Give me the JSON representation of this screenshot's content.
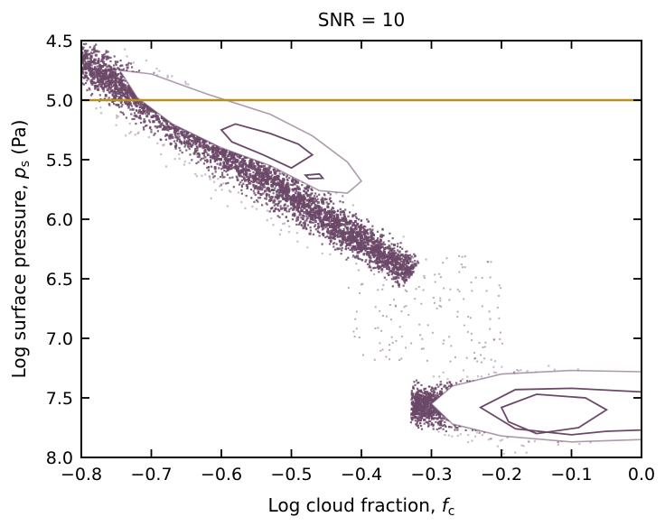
{
  "chart_data": {
    "type": "heatmap",
    "title": "SNR = 10",
    "xlabel": "Log cloud fraction, ",
    "xlabel_symbol": "f",
    "xlabel_sub": "c",
    "ylabel": "Log surface pressure, ",
    "ylabel_symbol": "p",
    "ylabel_sub": "s",
    "ylabel_unit": " (Pa)",
    "xlim": [
      -0.8,
      0.0
    ],
    "ylim": [
      8.0,
      4.5
    ],
    "y_inverted": true,
    "grid": false,
    "xticks": [
      -0.8,
      -0.7,
      -0.6,
      -0.5,
      -0.4,
      -0.3,
      -0.2,
      -0.1,
      0.0
    ],
    "xtick_labels": [
      "−0.8",
      "−0.7",
      "−0.6",
      "−0.5",
      "−0.4",
      "−0.3",
      "−0.2",
      "−0.1",
      "0.0"
    ],
    "yticks": [
      4.5,
      5.0,
      5.5,
      6.0,
      6.5,
      7.0,
      7.5,
      8.0
    ],
    "ytick_labels": [
      "4.5",
      "5.0",
      "5.5",
      "6.0",
      "6.5",
      "7.0",
      "7.5",
      "8.0"
    ],
    "reference_line": {
      "y": 5.0,
      "color": "#b8901e"
    },
    "colors": {
      "point": "#6b4868",
      "contour": "#6b4868",
      "fill": "#ffffff"
    },
    "modes": [
      {
        "name_hint": "upper",
        "axis_start": [
          -0.83,
          4.55
        ],
        "axis_end": [
          -0.33,
          6.45
        ],
        "half_width": 0.45,
        "contours": [
          [
            [
              -0.745,
              4.75
            ],
            [
              -0.7,
              4.78
            ],
            [
              -0.62,
              4.95
            ],
            [
              -0.53,
              5.12
            ],
            [
              -0.47,
              5.3
            ],
            [
              -0.42,
              5.52
            ],
            [
              -0.4,
              5.68
            ],
            [
              -0.42,
              5.78
            ],
            [
              -0.46,
              5.76
            ],
            [
              -0.53,
              5.55
            ],
            [
              -0.6,
              5.4
            ],
            [
              -0.67,
              5.2
            ],
            [
              -0.72,
              4.98
            ]
          ],
          [
            [
              -0.6,
              5.25
            ],
            [
              -0.58,
              5.2
            ],
            [
              -0.53,
              5.28
            ],
            [
              -0.49,
              5.37
            ],
            [
              -0.47,
              5.46
            ],
            [
              -0.5,
              5.57
            ],
            [
              -0.54,
              5.46
            ],
            [
              -0.585,
              5.35
            ]
          ],
          [
            [
              -0.48,
              5.63
            ],
            [
              -0.46,
              5.62
            ],
            [
              -0.455,
              5.655
            ],
            [
              -0.475,
              5.66
            ]
          ]
        ]
      },
      {
        "name_hint": "lower",
        "axis_start": [
          -0.33,
          7.55
        ],
        "axis_end": [
          0.0,
          7.6
        ],
        "half_width": 0.38,
        "contours": [
          [
            [
              -0.3,
              7.55
            ],
            [
              -0.27,
              7.4
            ],
            [
              -0.2,
              7.3
            ],
            [
              -0.1,
              7.27
            ],
            [
              0.0,
              7.28
            ],
            [
              0.0,
              7.85
            ],
            [
              -0.1,
              7.87
            ],
            [
              -0.2,
              7.82
            ],
            [
              -0.27,
              7.72
            ]
          ],
          [
            [
              -0.23,
              7.58
            ],
            [
              -0.18,
              7.43
            ],
            [
              -0.1,
              7.42
            ],
            [
              0.0,
              7.45
            ],
            [
              0.0,
              7.77
            ],
            [
              -0.05,
              7.78
            ],
            [
              -0.1,
              7.81
            ],
            [
              -0.18,
              7.76
            ]
          ],
          [
            [
              -0.2,
              7.58
            ],
            [
              -0.15,
              7.47
            ],
            [
              -0.08,
              7.5
            ],
            [
              -0.05,
              7.6
            ],
            [
              -0.09,
              7.75
            ],
            [
              -0.15,
              7.8
            ],
            [
              -0.19,
              7.7
            ]
          ]
        ]
      }
    ],
    "density_cells": [
      {
        "x": -0.8,
        "y": 4.5,
        "level": 0.62
      },
      {
        "x": -0.775,
        "y": 4.5,
        "level": 0.55
      },
      {
        "x": -0.75,
        "y": 4.5,
        "level": 0.45
      },
      {
        "x": -0.8,
        "y": 4.6,
        "level": 0.48
      },
      {
        "x": -0.775,
        "y": 4.6,
        "level": 0.4
      },
      {
        "x": -0.75,
        "y": 4.6,
        "level": 0.52
      },
      {
        "x": -0.725,
        "y": 4.6,
        "level": 0.58
      },
      {
        "x": -0.7,
        "y": 4.6,
        "level": 0.66
      },
      {
        "x": -0.8,
        "y": 4.7,
        "level": 0.58
      },
      {
        "x": -0.775,
        "y": 4.7,
        "level": 0.5
      },
      {
        "x": -0.675,
        "y": 4.7,
        "level": 0.6
      },
      {
        "x": -0.65,
        "y": 4.7,
        "level": 0.7
      },
      {
        "x": -0.8,
        "y": 4.8,
        "level": 0.78
      },
      {
        "x": -0.625,
        "y": 4.8,
        "level": 0.62
      },
      {
        "x": -0.6,
        "y": 4.8,
        "level": 0.74
      },
      {
        "x": -0.575,
        "y": 4.9,
        "level": 0.66
      },
      {
        "x": -0.55,
        "y": 4.9,
        "level": 0.78
      },
      {
        "x": -0.525,
        "y": 5.1,
        "level": 0.68
      },
      {
        "x": -0.5,
        "y": 5.2,
        "level": 0.76
      },
      {
        "x": -0.475,
        "y": 5.3,
        "level": 0.7
      },
      {
        "x": -0.45,
        "y": 5.4,
        "level": 0.74
      },
      {
        "x": -0.425,
        "y": 5.5,
        "level": 0.72
      },
      {
        "x": -0.4,
        "y": 5.7,
        "level": 0.76
      },
      {
        "x": -0.575,
        "y": 5.4,
        "level": 0.06
      },
      {
        "x": -0.55,
        "y": 5.4,
        "level": 0.12
      },
      {
        "x": -0.525,
        "y": 5.4,
        "level": 0.1
      },
      {
        "x": -0.6,
        "y": 5.3,
        "level": 0.05
      },
      {
        "x": -0.575,
        "y": 5.3,
        "level": 0.1
      },
      {
        "x": -0.55,
        "y": 5.3,
        "level": 0.12
      },
      {
        "x": -0.525,
        "y": 5.5,
        "level": 0.08
      },
      {
        "x": -0.5,
        "y": 5.5,
        "level": 0.1
      },
      {
        "x": -0.225,
        "y": 7.5,
        "level": 0.16
      },
      {
        "x": -0.2,
        "y": 7.5,
        "level": 0.42
      },
      {
        "x": -0.175,
        "y": 7.5,
        "level": 0.88
      },
      {
        "x": -0.15,
        "y": 7.5,
        "level": 0.88
      },
      {
        "x": -0.125,
        "y": 7.5,
        "level": 0.55
      },
      {
        "x": -0.1,
        "y": 7.5,
        "level": 0.3
      },
      {
        "x": -0.075,
        "y": 7.5,
        "level": 0.14
      },
      {
        "x": -0.05,
        "y": 7.5,
        "level": 0.08
      },
      {
        "x": -0.2,
        "y": 7.6,
        "level": 0.16
      },
      {
        "x": -0.175,
        "y": 7.6,
        "level": 0.32
      },
      {
        "x": -0.15,
        "y": 7.6,
        "level": 0.42
      },
      {
        "x": -0.125,
        "y": 7.6,
        "level": 0.3
      },
      {
        "x": -0.1,
        "y": 7.6,
        "level": 0.2
      },
      {
        "x": -0.075,
        "y": 7.6,
        "level": 0.12
      },
      {
        "x": -0.225,
        "y": 7.4,
        "level": 0.08
      },
      {
        "x": -0.2,
        "y": 7.4,
        "level": 0.1
      },
      {
        "x": -0.15,
        "y": 7.4,
        "level": 0.06
      },
      {
        "x": -0.275,
        "y": 7.3,
        "level": 0.68
      },
      {
        "x": -0.3,
        "y": 7.4,
        "level": 0.72
      },
      {
        "x": -0.3,
        "y": 7.6,
        "level": 0.74
      },
      {
        "x": -0.275,
        "y": 7.7,
        "level": 0.66
      },
      {
        "x": -0.25,
        "y": 7.8,
        "level": 0.7
      },
      {
        "x": -0.325,
        "y": 7.5,
        "level": 0.6
      },
      {
        "x": -0.025,
        "y": 7.2,
        "level": 0.66
      },
      {
        "x": -0.025,
        "y": 7.9,
        "level": 0.64
      },
      {
        "x": -0.2,
        "y": 7.2,
        "level": 0.7
      },
      {
        "x": -0.125,
        "y": 7.9,
        "level": 0.66
      },
      {
        "x": -0.25,
        "y": 7.2,
        "level": 0.6
      }
    ]
  }
}
